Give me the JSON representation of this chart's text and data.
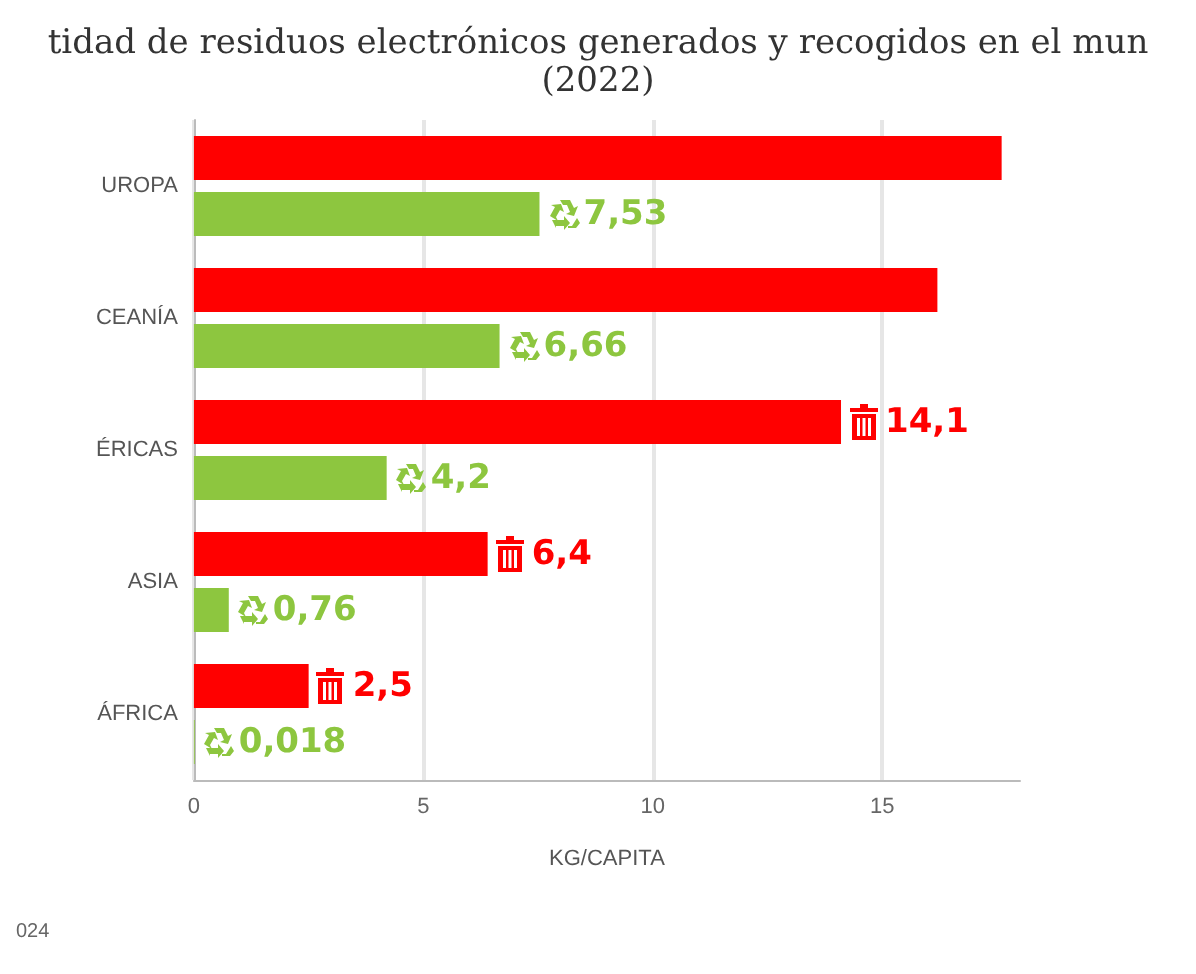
{
  "chart_data": {
    "type": "bar",
    "orientation": "horizontal",
    "title": "tidad de residuos electrónicos generados y recogidos en el mun",
    "subtitle": "(2022)",
    "xlabel": "KG/CAPITA",
    "categories": [
      "UROPA",
      "CEANÍA",
      "ÉRICAS",
      "ASIA",
      "ÁFRICA"
    ],
    "series": [
      {
        "color": "#ff0000",
        "values": [
          17.6,
          16.2,
          14.1,
          6.4,
          2.5
        ],
        "value_labels": [
          null,
          null,
          "14,1",
          "6,4",
          "2,5"
        ]
      },
      {
        "color": "#8dc63f",
        "values": [
          7.53,
          6.66,
          4.2,
          0.76,
          0.018
        ],
        "value_labels": [
          "7,53",
          "6,66",
          "4,2",
          "0,76",
          "0,018"
        ]
      }
    ],
    "xlim": [
      0,
      18
    ],
    "xticks": [
      0,
      5,
      10,
      15
    ],
    "grid": "x",
    "annotations": [
      "024"
    ]
  }
}
